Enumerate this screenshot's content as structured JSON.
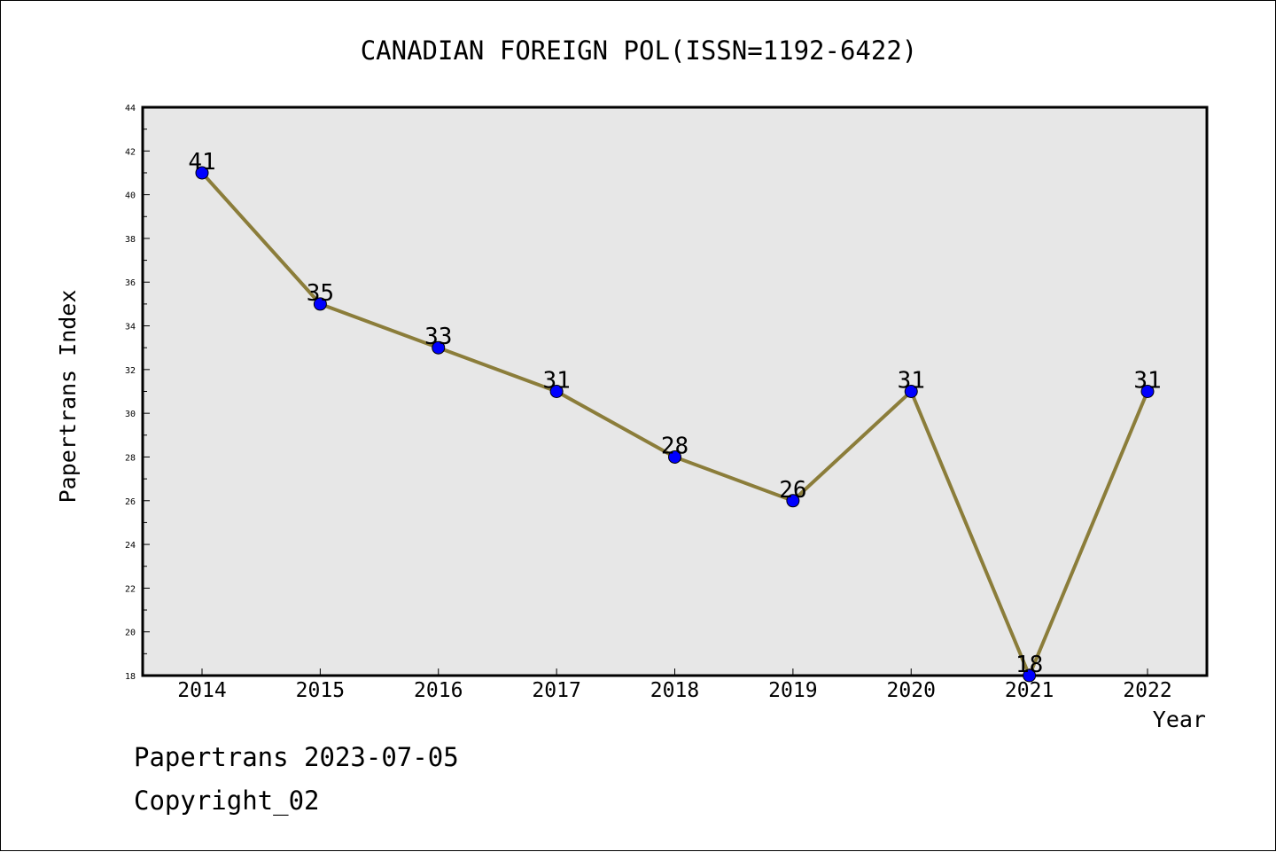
{
  "footer": {
    "line1": "Papertrans 2023-07-05",
    "line2": "Copyright_02"
  },
  "chart_data": {
    "type": "line",
    "title": "CANADIAN FOREIGN POL(ISSN=1192-6422)",
    "xlabel": "Year",
    "ylabel": "Papertrans Index",
    "categories": [
      "2014",
      "2015",
      "2016",
      "2017",
      "2018",
      "2019",
      "2020",
      "2021",
      "2022"
    ],
    "series": [
      {
        "values": [
          41,
          35,
          33,
          31,
          28,
          26,
          31,
          18,
          31
        ]
      }
    ],
    "data_labels": [
      "41",
      "35",
      "33",
      "31",
      "28",
      "26",
      "31",
      "18",
      "31"
    ],
    "ylim": [
      18,
      44
    ],
    "yticks": [
      "18",
      "20",
      "22",
      "24",
      "26",
      "28",
      "30",
      "32",
      "34",
      "36",
      "38",
      "40",
      "42",
      "44"
    ],
    "grid": false,
    "colors": {
      "line": "#8B7D3A",
      "marker": "#0000FF",
      "plot_background": "#E7E7E7"
    }
  }
}
